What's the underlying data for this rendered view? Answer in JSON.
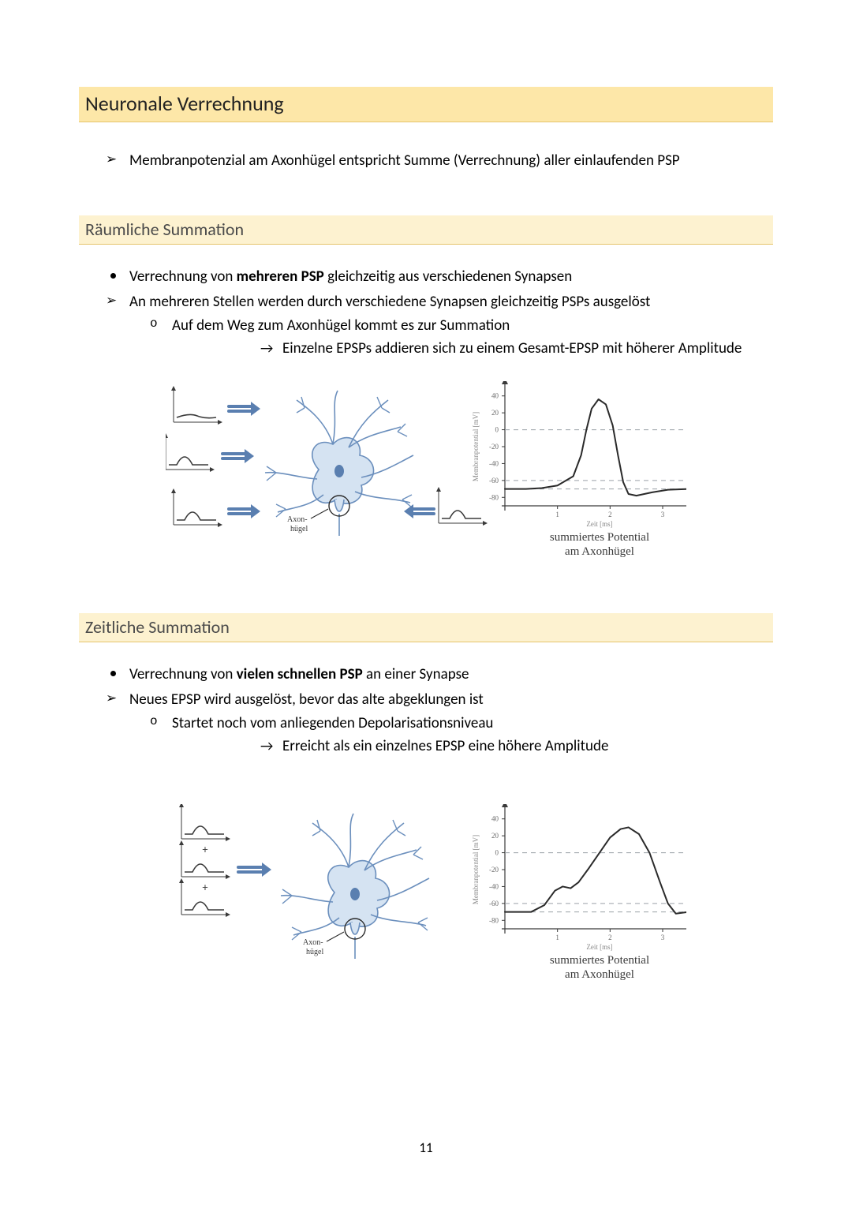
{
  "page": {
    "number": "11",
    "title": "Neuronale Verrechnung",
    "intro_bullet": "Membranpotenzial am Axonhügel entspricht Summe (Verrechnung) aller einlaufenden PSP"
  },
  "section1": {
    "heading": "Räumliche Summation",
    "b1_pre": "Verrechnung von ",
    "b1_bold": "mehreren PSP",
    "b1_post": " gleichzeitig aus verschiedenen Synapsen",
    "b2": "An mehreren Stellen werden durch verschiedene Synapsen gleichzeitig PSPs ausgelöst",
    "b2a": "Auf dem Weg zum Axonhügel kommt es zur Summation",
    "b2a_arrow": "Einzelne EPSPs addieren sich zu einem Gesamt-EPSP mit höherer Amplitude"
  },
  "section2": {
    "heading": "Zeitliche Summation",
    "b1_pre": "Verrechnung von ",
    "b1_bold": "vielen schnellen PSP",
    "b1_post": " an einer Synapse",
    "b2": "Neues EPSP wird ausgelöst, bevor das alte abgeklungen ist",
    "b2a": "Startet noch vom anliegenden Depolarisationsniveau",
    "b2a_arrow": "Erreicht als ein einzelnes EPSP eine höhere Amplitude"
  },
  "neuron": {
    "body_fill": "#d5e3f2",
    "body_stroke": "#6b8fbd",
    "nucleus_fill": "#5a7fb0",
    "label1": "Axon-",
    "label2": "hügel",
    "arrow_color": "#5a7fb0",
    "trace_color": "#3a3a3a",
    "axis_color": "#3a3a3a"
  },
  "plussign": "+",
  "chart": {
    "type": "line",
    "axis_color": "#3a3a3a",
    "grid_color": "#9aa0a6",
    "curve_color": "#2a2a2a",
    "yticks": [
      -80,
      -60,
      -40,
      -20,
      0,
      20,
      40
    ],
    "xticks": [
      1,
      2,
      3
    ],
    "ylim": [
      -90,
      50
    ],
    "xlim": [
      0,
      3.6
    ],
    "ylabel": "Membranpotential [mV]",
    "xlabel": "Zeit [ms]",
    "caption1": "summiertes Potential",
    "caption2": "am Axonhügel",
    "threshold1": 0,
    "threshold2": -60,
    "threshold3": -70,
    "label_fontsize": 9,
    "caption_fontsize": 15,
    "font": "Comic Sans MS, cursive",
    "background_color": "#ffffff",
    "spatial_curve": [
      [
        0.0,
        -70
      ],
      [
        0.4,
        -70
      ],
      [
        0.7,
        -69
      ],
      [
        1.0,
        -66
      ],
      [
        1.3,
        -55
      ],
      [
        1.45,
        -30
      ],
      [
        1.55,
        0
      ],
      [
        1.65,
        25
      ],
      [
        1.78,
        36
      ],
      [
        1.92,
        30
      ],
      [
        2.05,
        5
      ],
      [
        2.15,
        -30
      ],
      [
        2.25,
        -62
      ],
      [
        2.35,
        -76
      ],
      [
        2.5,
        -78
      ],
      [
        2.8,
        -74
      ],
      [
        3.1,
        -71
      ],
      [
        3.5,
        -70
      ]
    ],
    "temporal_curve": [
      [
        0.0,
        -70
      ],
      [
        0.5,
        -70
      ],
      [
        0.75,
        -62
      ],
      [
        0.95,
        -45
      ],
      [
        1.1,
        -40
      ],
      [
        1.25,
        -42
      ],
      [
        1.4,
        -35
      ],
      [
        1.6,
        -18
      ],
      [
        1.8,
        0
      ],
      [
        2.0,
        18
      ],
      [
        2.2,
        28
      ],
      [
        2.35,
        30
      ],
      [
        2.55,
        22
      ],
      [
        2.75,
        0
      ],
      [
        2.95,
        -35
      ],
      [
        3.1,
        -60
      ],
      [
        3.25,
        -72
      ],
      [
        3.5,
        -70
      ]
    ]
  }
}
